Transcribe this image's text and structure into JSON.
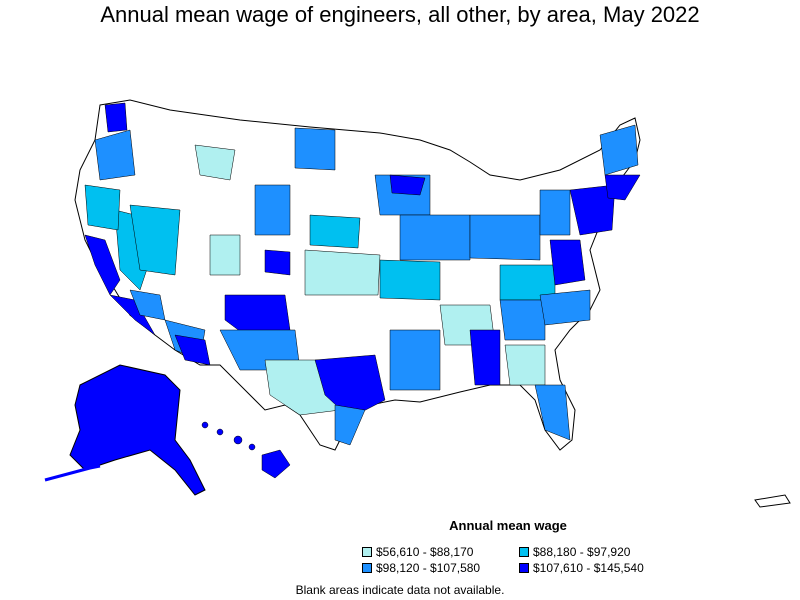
{
  "title": "Annual mean wage of engineers, all other, by area, May 2022",
  "legend": {
    "title": "Annual mean wage",
    "items": [
      {
        "label": "$56,610 - $88,170",
        "color": "#b0f0f0"
      },
      {
        "label": "$88,180 - $97,920",
        "color": "#00c0f0"
      },
      {
        "label": "$98,120 - $107,580",
        "color": "#1e90ff"
      },
      {
        "label": "$107,610 - $145,540",
        "color": "#0000ff"
      }
    ]
  },
  "footnote": "Blank areas indicate data not available.",
  "colors": {
    "no_data": "#ffffff",
    "border": "#000000"
  }
}
